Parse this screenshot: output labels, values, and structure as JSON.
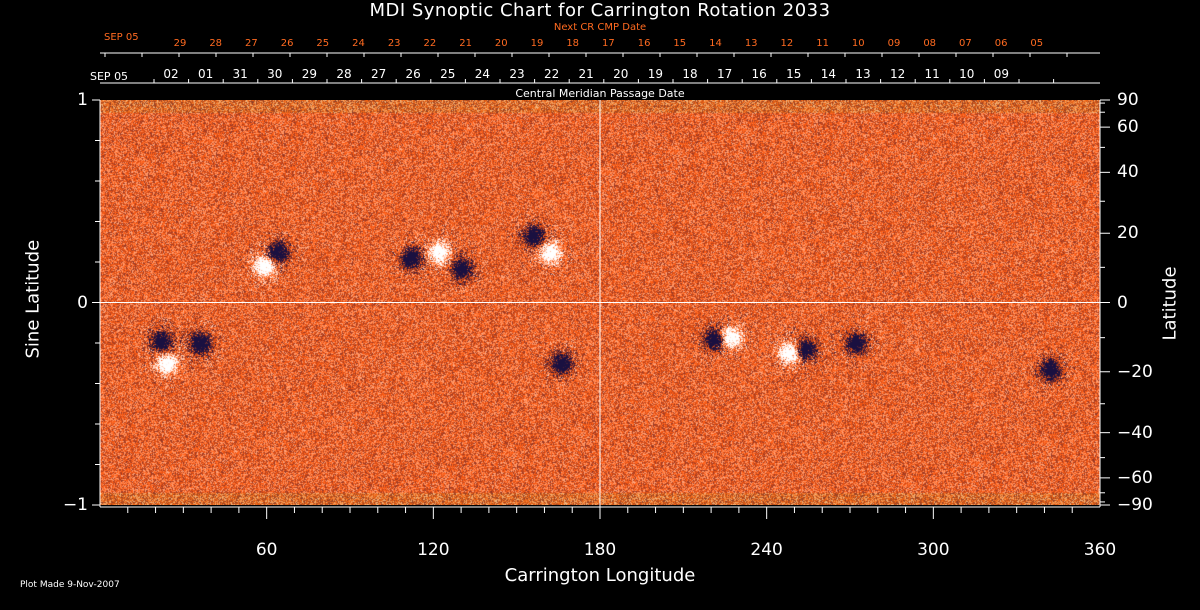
{
  "chart_data": {
    "type": "heatmap",
    "title": "MDI Synoptic Chart for Carrington Rotation 2033",
    "xlabel": "Carrington Longitude",
    "ylabel_left": "Sine Latitude",
    "ylabel_right": "Latitude",
    "xlim": [
      0,
      360
    ],
    "ylim": [
      -1,
      1
    ],
    "x_ticks": [
      60,
      120,
      180,
      240,
      300,
      360
    ],
    "y_ticks_left": [
      "1",
      "0",
      "−1"
    ],
    "y_ticks_right": [
      90,
      60,
      40,
      20,
      0,
      -20,
      -40,
      -60,
      -90
    ],
    "cmp_axis": {
      "label": "Central Meridian Passage Date",
      "start_label": "SEP 05",
      "dates": [
        "02",
        "01",
        "31",
        "30",
        "29",
        "28",
        "27",
        "26",
        "25",
        "24",
        "23",
        "22",
        "21",
        "20",
        "19",
        "18",
        "17",
        "16",
        "15",
        "14",
        "13",
        "12",
        "11",
        "10",
        "09"
      ]
    },
    "next_cr_axis": {
      "label": "Next CR CMP Date",
      "start_label": "SEP 05",
      "dates": [
        "29",
        "28",
        "27",
        "26",
        "25",
        "24",
        "23",
        "22",
        "21",
        "20",
        "19",
        "18",
        "17",
        "16",
        "15",
        "14",
        "13",
        "12",
        "11",
        "10",
        "09",
        "08",
        "07",
        "06",
        "05"
      ]
    },
    "colors": {
      "background": "#ff5a10",
      "positive": "#ffffff",
      "negative": "#1a1040",
      "next_cr_text": "#ff6a20"
    },
    "active_regions": [
      {
        "lon": 59,
        "sinlat": 0.18,
        "polarity": "positive"
      },
      {
        "lon": 64,
        "sinlat": 0.25,
        "polarity": "negative"
      },
      {
        "lon": 112,
        "sinlat": 0.22,
        "polarity": "negative"
      },
      {
        "lon": 122,
        "sinlat": 0.25,
        "polarity": "positive"
      },
      {
        "lon": 130,
        "sinlat": 0.17,
        "polarity": "negative"
      },
      {
        "lon": 156,
        "sinlat": 0.33,
        "polarity": "negative"
      },
      {
        "lon": 162,
        "sinlat": 0.25,
        "polarity": "positive"
      },
      {
        "lon": 22,
        "sinlat": -0.19,
        "polarity": "negative"
      },
      {
        "lon": 24,
        "sinlat": -0.3,
        "polarity": "positive"
      },
      {
        "lon": 36,
        "sinlat": -0.2,
        "polarity": "negative"
      },
      {
        "lon": 221,
        "sinlat": -0.18,
        "polarity": "negative"
      },
      {
        "lon": 227,
        "sinlat": -0.17,
        "polarity": "positive"
      },
      {
        "lon": 248,
        "sinlat": -0.25,
        "polarity": "positive"
      },
      {
        "lon": 254,
        "sinlat": -0.23,
        "polarity": "negative"
      },
      {
        "lon": 272,
        "sinlat": -0.2,
        "polarity": "negative"
      },
      {
        "lon": 166,
        "sinlat": -0.3,
        "polarity": "negative"
      },
      {
        "lon": 342,
        "sinlat": -0.33,
        "polarity": "negative"
      }
    ]
  },
  "footer": {
    "plot_made": "Plot Made  9-Nov-2007"
  }
}
